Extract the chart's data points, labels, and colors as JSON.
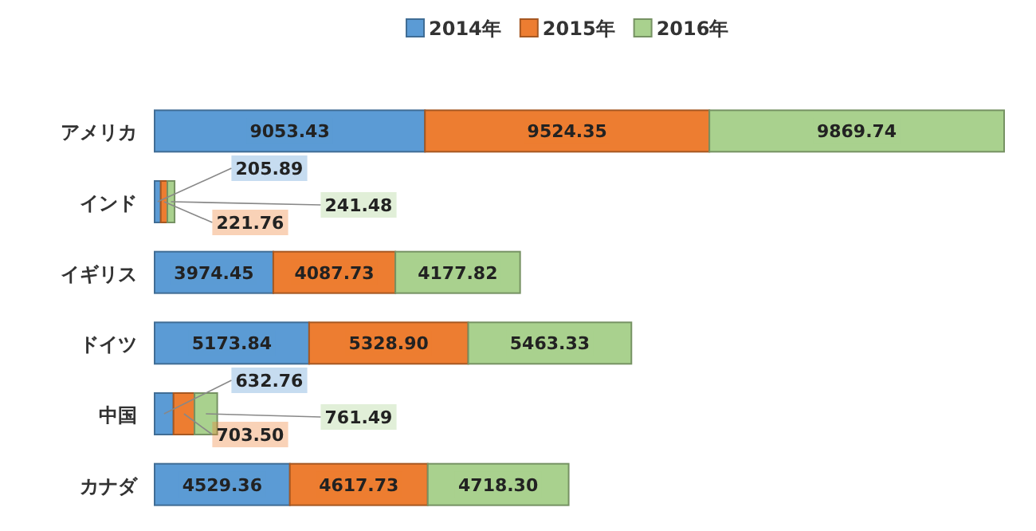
{
  "chart_data": {
    "type": "bar",
    "orientation": "horizontal",
    "stacked": true,
    "legend": "top",
    "categories": [
      "アメリカ",
      "インド",
      "イギリス",
      "ドイツ",
      "中国",
      "カナダ"
    ],
    "series": [
      {
        "name": "2014年",
        "color": "#5b9bd5",
        "values": [
          9053.43,
          205.89,
          3974.45,
          5173.84,
          632.76,
          4529.36
        ],
        "value_labels": [
          "9053.43",
          "205.89",
          "3974.45",
          "5173.84",
          "632.76",
          "4529.36"
        ]
      },
      {
        "name": "2015年",
        "color": "#ed7d31",
        "values": [
          9524.35,
          221.76,
          4087.73,
          5328.9,
          703.5,
          4617.73
        ],
        "value_labels": [
          "9524.35",
          "221.76",
          "4087.73",
          "5328.90",
          "703.50",
          "4617.73"
        ]
      },
      {
        "name": "2016年",
        "color": "#a9d18e",
        "values": [
          9869.74,
          241.48,
          4177.82,
          5463.33,
          761.49,
          4718.3
        ],
        "value_labels": [
          "9869.74",
          "241.48",
          "4177.82",
          "5463.33",
          "761.49",
          "4718.30"
        ]
      }
    ]
  }
}
